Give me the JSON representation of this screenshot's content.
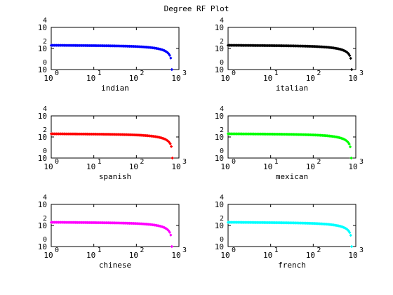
{
  "title": "Degree RF Plot",
  "chart_data": [
    {
      "type": "scatter",
      "xlabel": "indian",
      "color": "#0000ff",
      "x_max": 680,
      "n_points": 115
    },
    {
      "type": "scatter",
      "xlabel": "italian",
      "color": "#000000",
      "x_max": 800,
      "n_points": 125
    },
    {
      "type": "scatter",
      "xlabel": "spanish",
      "color": "#ff0000",
      "x_max": 700,
      "n_points": 115
    },
    {
      "type": "scatter",
      "xlabel": "mexican",
      "color": "#00ff00",
      "x_max": 780,
      "n_points": 125
    },
    {
      "type": "scatter",
      "xlabel": "chinese",
      "color": "#ff00ff",
      "x_max": 680,
      "n_points": 115
    },
    {
      "type": "scatter",
      "xlabel": "french",
      "color": "#00ffff",
      "x_max": 800,
      "n_points": 125
    }
  ],
  "shared": {
    "xscale": "log",
    "yscale": "log",
    "xlim": [
      1,
      1000
    ],
    "ylim": [
      1,
      10000
    ],
    "x_tick_base": "10",
    "x_tick_exponents": [
      "0",
      "1",
      "2",
      "3"
    ],
    "y_tick_base": "10",
    "y_tick_exponents": [
      "0",
      "2",
      "4"
    ],
    "y_plateau": 200,
    "grid": false,
    "marker": "diamond"
  }
}
